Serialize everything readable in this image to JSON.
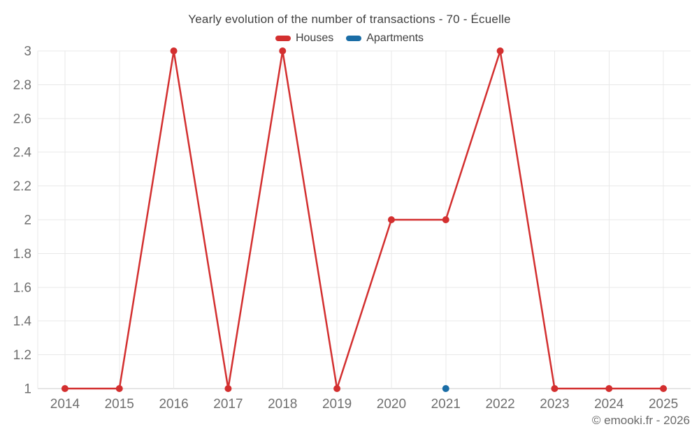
{
  "chart_data": {
    "type": "line",
    "title": "Yearly evolution of the number of transactions - 70 - Écuelle",
    "categories": [
      "2014",
      "2015",
      "2016",
      "2017",
      "2018",
      "2019",
      "2020",
      "2021",
      "2022",
      "2023",
      "2024",
      "2025"
    ],
    "series": [
      {
        "name": "Houses",
        "color": "#d32f2f",
        "values": [
          1,
          1,
          3,
          1,
          3,
          1,
          2,
          2,
          3,
          1,
          1,
          1
        ]
      },
      {
        "name": "Apartments",
        "color": "#1a6da6",
        "values": [
          null,
          null,
          null,
          null,
          null,
          null,
          null,
          1,
          null,
          null,
          null,
          null
        ]
      }
    ],
    "xlabel": "",
    "ylabel": "",
    "ylim": [
      1,
      3
    ],
    "yticks": [
      "1",
      "1.2",
      "1.4",
      "1.6",
      "1.8",
      "2",
      "2.2",
      "2.4",
      "2.6",
      "2.8",
      "3"
    ],
    "grid": true,
    "legend_position": "top"
  },
  "footer": {
    "copyright": "© emooki.fr - 2026"
  }
}
